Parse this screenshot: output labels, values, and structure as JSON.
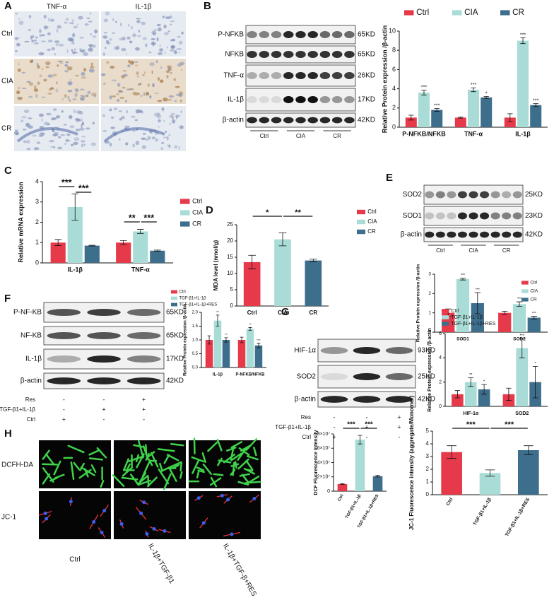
{
  "panel_labels": [
    "A",
    "B",
    "C",
    "D",
    "E",
    "F",
    "G",
    "H"
  ],
  "ihc": {
    "columns": [
      "TNF-α",
      "IL-1β"
    ],
    "rows": [
      "Ctrl",
      "CIA",
      "CR"
    ]
  },
  "blot_B": {
    "rows": [
      {
        "name": "P-NFKB",
        "size": "65KD"
      },
      {
        "name": "NFKB",
        "size": "65KD"
      },
      {
        "name": "TNF-α",
        "size": "26KD"
      },
      {
        "name": "IL-1β",
        "size": "17KD"
      },
      {
        "name": "β-actin",
        "size": "42KD"
      }
    ],
    "groups": [
      "Ctrl",
      "CIA",
      "CR"
    ]
  },
  "blot_E": {
    "rows": [
      {
        "name": "SOD2",
        "size": "25KD"
      },
      {
        "name": "SOD1",
        "size": "23KD"
      },
      {
        "name": "β-actin",
        "size": "42KD"
      }
    ],
    "groups": [
      "Ctrl",
      "CIA",
      "CR"
    ]
  },
  "blot_F": {
    "rows": [
      {
        "name": "P-NF-KB",
        "size": "65KD"
      },
      {
        "name": "NF-KB",
        "size": "65KD"
      },
      {
        "name": "IL-1β",
        "size": "17KD"
      },
      {
        "name": "β-actin",
        "size": "42KD"
      }
    ],
    "conditions": [
      {
        "name": "Res",
        "marks": [
          "-",
          "-",
          "+"
        ]
      },
      {
        "name": "TGF-β1+IL-1β",
        "marks": [
          "-",
          "+",
          "+"
        ]
      },
      {
        "name": "Ctrl",
        "marks": [
          "+",
          "-",
          "-"
        ]
      }
    ]
  },
  "blot_G": {
    "rows": [
      {
        "name": "HIF-1α",
        "size": "93KD"
      },
      {
        "name": "SOD2",
        "size": "25KD"
      },
      {
        "name": "β-actin",
        "size": "42KD"
      }
    ],
    "conditions": [
      {
        "name": "Res",
        "marks": [
          "-",
          "-",
          "+"
        ]
      },
      {
        "name": "TGF-β1+IL-1β",
        "marks": [
          "-",
          "+",
          "+"
        ]
      },
      {
        "name": "Ctrl",
        "marks": [
          "+",
          "-",
          "-"
        ]
      }
    ]
  },
  "fluorescence": {
    "rows": [
      "DCFH-DA",
      "JC-1"
    ],
    "columns": [
      "Ctrl",
      "IL-1β+TGF-β1",
      "IL-1β+TGF-β+RES"
    ]
  },
  "chart_data": [
    {
      "type": "bar",
      "ylabel": "Relative Protein expression /β-actin",
      "categories": [
        "P-NFKB/NFKB",
        "TNF-α",
        "IL-1β"
      ],
      "series": [
        {
          "name": "Ctrl",
          "color": "#e6394a",
          "values": [
            1.0,
            1.0,
            1.0
          ],
          "errors": [
            0.25,
            0.05,
            0.4
          ]
        },
        {
          "name": "CIA",
          "color": "#a9dcd6",
          "values": [
            3.6,
            3.9,
            9.0
          ],
          "errors": [
            0.25,
            0.2,
            0.3
          ],
          "stars": [
            "***",
            "***",
            "***"
          ]
        },
        {
          "name": "CR",
          "color": "#3d6e8c",
          "values": [
            1.8,
            3.1,
            2.3
          ],
          "errors": [
            0.15,
            0.1,
            0.15
          ],
          "stars": [
            "***",
            "*",
            "***"
          ]
        }
      ],
      "ylim": [
        0,
        10
      ],
      "yticks": [
        0,
        2,
        4,
        6,
        8,
        10
      ],
      "legend": "top"
    },
    {
      "type": "bar",
      "ylabel": "Relative mRNA expression",
      "categories": [
        "IL-1β",
        "TNF-α"
      ],
      "series": [
        {
          "name": "Ctrl",
          "color": "#e6394a",
          "values": [
            1.0,
            1.0
          ],
          "errors": [
            0.15,
            0.1
          ]
        },
        {
          "name": "CIA",
          "color": "#a9dcd6",
          "values": [
            2.75,
            1.55
          ],
          "errors": [
            0.65,
            0.1
          ]
        },
        {
          "name": "CR",
          "color": "#3d6e8c",
          "values": [
            0.85,
            0.6
          ],
          "errors": [
            0.02,
            0.03
          ]
        }
      ],
      "significance": [
        "***",
        "***",
        "**",
        "***"
      ],
      "ylim": [
        0,
        4
      ],
      "yticks": [
        0,
        1,
        2,
        3,
        4
      ],
      "legend": "right"
    },
    {
      "type": "bar",
      "ylabel": "MDA level (nmol/g)",
      "categories": [
        "Ctrl",
        "CIA",
        "CR"
      ],
      "values": [
        13.5,
        20.5,
        14.0
      ],
      "errors": [
        2.1,
        2.0,
        0.4
      ],
      "colors": [
        "#e6394a",
        "#a9dcd6",
        "#3d6e8c"
      ],
      "significance": [
        "*",
        "**"
      ],
      "ylim": [
        0,
        25
      ],
      "yticks": [
        0,
        5,
        10,
        15,
        20,
        25
      ],
      "legend": "right"
    },
    {
      "type": "bar",
      "ylabel": "Relative Protein expression /β-actin",
      "categories": [
        "SOD1",
        "SOD2"
      ],
      "series": [
        {
          "name": "Ctrl",
          "color": "#e6394a",
          "values": [
            1.0,
            1.0
          ],
          "errors": [
            0.2,
            0.08
          ]
        },
        {
          "name": "CIA",
          "color": "#a9dcd6",
          "values": [
            2.75,
            1.45
          ],
          "errors": [
            0.05,
            0.12
          ],
          "stars": [
            "***",
            "***"
          ]
        },
        {
          "name": "CR",
          "color": "#3d6e8c",
          "values": [
            1.5,
            0.75
          ],
          "errors": [
            0.55,
            0.07
          ],
          "stars": [
            "***",
            "***"
          ]
        }
      ],
      "ylim": [
        0,
        3
      ],
      "yticks": [
        0,
        1,
        2,
        3
      ],
      "legend": "right"
    },
    {
      "type": "bar",
      "ylabel": "Relative Protein expression /β-actin",
      "categories": [
        "IL-1β",
        "P-NFKB/NFKB"
      ],
      "series": [
        {
          "name": "Ctrl",
          "color": "#e6394a",
          "values": [
            1.0,
            1.0
          ],
          "errors": [
            0.15,
            0.1
          ]
        },
        {
          "name": "TGF-β1+IL-1β",
          "color": "#a9dcd6",
          "values": [
            1.7,
            1.4
          ],
          "errors": [
            0.2,
            0.05
          ],
          "stars": [
            "**",
            "**"
          ]
        },
        {
          "name": "TGF-β1+IL-1β+RES",
          "color": "#3d6e8c",
          "values": [
            1.0,
            0.8
          ],
          "errors": [
            0.08,
            0.08
          ],
          "stars": [
            "**",
            "***"
          ]
        }
      ],
      "ylim": [
        0,
        2
      ],
      "yticks": [
        {
          "value": 0,
          "label": "0.0"
        },
        0.5,
        {
          "value": 1,
          "label": "1.0"
        },
        1.5,
        {
          "value": 2,
          "label": "2.0"
        }
      ],
      "legend": "top"
    },
    {
      "type": "bar",
      "ylabel": "Relative Protein expression /β-actin",
      "categories": [
        "HIF-1α",
        "SOD2"
      ],
      "series": [
        {
          "name": "Ctrl",
          "color": "#e6394a",
          "values": [
            1.0,
            1.0
          ],
          "errors": [
            0.3,
            0.5
          ]
        },
        {
          "name": "TGF-β1+IL-1β",
          "color": "#a9dcd6",
          "values": [
            2.0,
            4.8
          ],
          "errors": [
            0.35,
            0.8
          ],
          "stars": [
            "**",
            "***"
          ]
        },
        {
          "name": "TGF-β1+IL-1β+RES",
          "color": "#3d6e8c",
          "values": [
            1.4,
            2.0
          ],
          "errors": [
            0.4,
            1.3
          ],
          "stars": [
            "*",
            "*"
          ]
        }
      ],
      "ylim": [
        0,
        6
      ],
      "yticks": [
        0,
        2,
        4,
        6
      ],
      "legend": "top"
    },
    {
      "type": "bar",
      "ylabel": "DCF Fluorescence Intensity",
      "categories": [
        "Ctrl",
        "TGF-β1+IL-1β",
        "TGF-β1+IL-1β+RES"
      ],
      "values": [
        10000000,
        72000000,
        21000000
      ],
      "errors": [
        500000,
        6000000,
        1200000
      ],
      "colors": [
        "#e6394a",
        "#a9dcd6",
        "#3d6e8c"
      ],
      "significance": [
        "***",
        "***"
      ],
      "ylim": [
        0,
        80000000
      ],
      "yticks": [
        0,
        {
          "value": 20000000,
          "label": "2×10⁷"
        },
        {
          "value": 40000000,
          "label": "4×10⁷"
        },
        {
          "value": 60000000,
          "label": "6×10⁷"
        },
        {
          "value": 80000000,
          "label": "8×10⁷"
        }
      ]
    },
    {
      "type": "bar",
      "ylabel": "JC-1 Fluorescence intensity (aggregate/Monomer)",
      "categories": [
        "Ctrl",
        "TGF-β1+IL-1β",
        "TGF-β1+IL-1β+RES"
      ],
      "values": [
        3.35,
        1.7,
        3.5
      ],
      "errors": [
        0.5,
        0.25,
        0.35
      ],
      "colors": [
        "#e6394a",
        "#a9dcd6",
        "#3d6e8c"
      ],
      "significance": [
        "***",
        "***"
      ],
      "ylim": [
        0,
        5
      ],
      "yticks": [
        0,
        1,
        2,
        3,
        4,
        5
      ]
    }
  ]
}
